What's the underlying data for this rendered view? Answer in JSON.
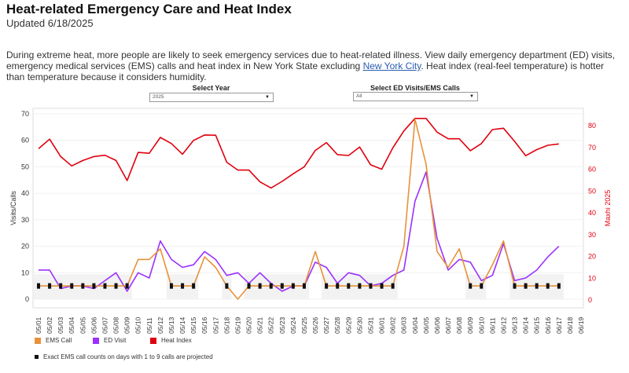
{
  "header": {
    "title": "Heat-related Emergency Care and Heat Index",
    "updated": "Updated 6/18/2025",
    "description_before_link": "During extreme heat, more people are likely to seek emergency services due to heat-related illness. View daily emergency department (ED) visits, emergency medical services (EMS) calls and heat index in New York State excluding ",
    "link_text": "New York City",
    "description_after_link": ". Heat index (real-feel temperature) is hotter than temperature because it considers humidity."
  },
  "filters": {
    "year_label": "Select Year",
    "year_value": "2025",
    "type_label": "Select ED Visits/EMS Calls",
    "type_value": "All"
  },
  "legend": {
    "items": [
      {
        "label": "EMS Call",
        "color": "#e8913a"
      },
      {
        "label": "ED Visit",
        "color": "#9b30ff"
      },
      {
        "label": "Heat Index",
        "color": "#e0000f"
      }
    ],
    "note": "Exact EMS call counts on days with 1 to 9 calls are projected"
  },
  "chart_data": {
    "type": "line",
    "xlabel": "",
    "ylabel": "Visits/Calls",
    "y2label": "Maxhi 2025",
    "ylim": [
      0,
      70
    ],
    "y2lim": [
      0,
      80
    ],
    "yticks": [
      "0",
      "10",
      "20",
      "30",
      "40",
      "50",
      "60",
      "70"
    ],
    "y2ticks": [
      "0",
      "10",
      "20",
      "30",
      "40",
      "50",
      "60",
      "70",
      "80"
    ],
    "grid": true,
    "categories": [
      "05/01",
      "05/02",
      "05/03",
      "05/04",
      "05/05",
      "05/06",
      "05/07",
      "05/08",
      "05/09",
      "05/10",
      "05/11",
      "05/12",
      "05/13",
      "05/14",
      "05/15",
      "05/16",
      "05/17",
      "05/18",
      "05/19",
      "05/20",
      "05/21",
      "05/22",
      "05/23",
      "05/24",
      "05/25",
      "05/26",
      "05/27",
      "05/28",
      "05/29",
      "05/30",
      "05/31",
      "06/01",
      "06/02",
      "06/03",
      "06/04",
      "06/05",
      "06/06",
      "06/07",
      "06/08",
      "06/09",
      "06/10",
      "06/11",
      "06/12",
      "06/13",
      "06/14",
      "06/15",
      "06/16",
      "06/17",
      "06/18",
      "06/19"
    ],
    "series": [
      {
        "name": "EMS Call",
        "axis": "left",
        "color": "#e8913a",
        "values": [
          5,
          5,
          5,
          5,
          5,
          5,
          5,
          5,
          5,
          15,
          15,
          19,
          5,
          5,
          5,
          16,
          12,
          5,
          0,
          5,
          5,
          5,
          5,
          5,
          5,
          18,
          5,
          5,
          5,
          5,
          5,
          5,
          5,
          20,
          68,
          51,
          18,
          12,
          19,
          5,
          5,
          13,
          22,
          5,
          5,
          5,
          5,
          5,
          null,
          null
        ],
        "projected": [
          true,
          true,
          true,
          true,
          true,
          true,
          true,
          true,
          true,
          false,
          false,
          false,
          true,
          true,
          true,
          false,
          false,
          true,
          false,
          true,
          true,
          true,
          true,
          true,
          true,
          false,
          true,
          true,
          true,
          true,
          true,
          true,
          true,
          false,
          false,
          false,
          false,
          false,
          false,
          true,
          true,
          false,
          false,
          true,
          true,
          true,
          true,
          true,
          false,
          false
        ]
      },
      {
        "name": "ED Visit",
        "axis": "left",
        "color": "#9b30ff",
        "values": [
          11,
          11,
          4,
          5,
          5,
          4,
          7,
          10,
          3,
          10,
          8,
          22,
          15,
          12,
          13,
          18,
          15,
          9,
          10,
          6,
          10,
          6,
          3,
          5,
          5,
          14,
          12,
          6,
          10,
          9,
          5,
          6,
          9,
          11,
          37,
          48,
          23,
          11,
          15,
          14,
          7,
          9,
          21,
          7,
          8,
          11,
          16,
          20,
          null,
          null
        ]
      },
      {
        "name": "Heat Index",
        "axis": "right",
        "color": "#e0000f",
        "values": [
          69.4,
          73.8,
          65.8,
          61.5,
          64,
          65.8,
          66.4,
          64,
          54.8,
          67.7,
          67.3,
          74.6,
          71.8,
          66.9,
          73.2,
          75.7,
          75.6,
          63.2,
          59.6,
          59.6,
          54.2,
          51.4,
          54.4,
          57.9,
          61.1,
          68.6,
          72.2,
          66.7,
          66.3,
          70.2,
          62,
          60,
          69.8,
          77.6,
          83.3,
          83.3,
          77,
          74,
          74,
          68.5,
          71.8,
          78.2,
          78.8,
          72.8,
          66.2,
          69,
          71,
          71.6,
          null,
          null
        ]
      }
    ]
  }
}
